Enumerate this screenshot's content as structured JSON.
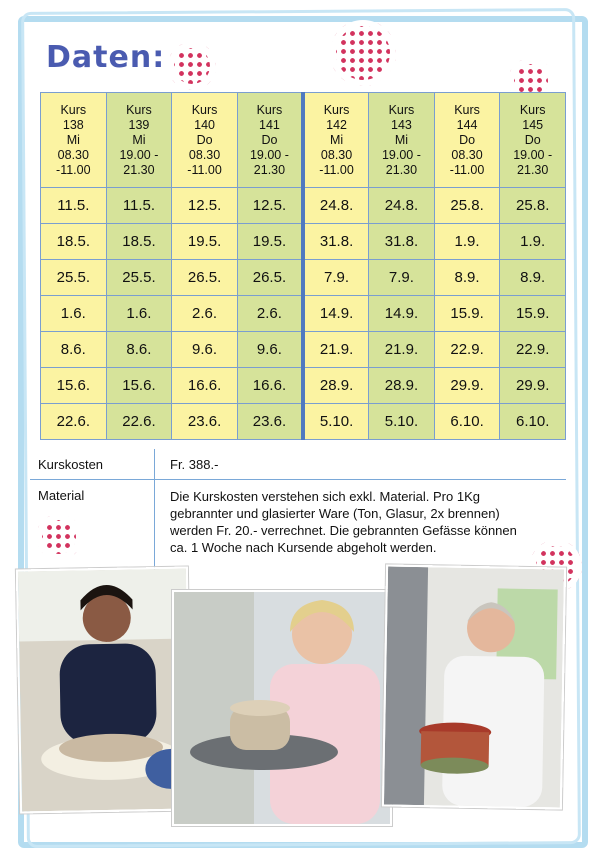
{
  "title": "Daten:",
  "header_row": [
    {
      "kurs": "Kurs",
      "num": "138",
      "day": "Mi",
      "time1": "08.30",
      "time2": "-11.00"
    },
    {
      "kurs": "Kurs",
      "num": "139",
      "day": "Mi",
      "time1": "19.00 -",
      "time2": "21.30"
    },
    {
      "kurs": "Kurs",
      "num": "140",
      "day": "Do",
      "time1": "08.30",
      "time2": "-11.00"
    },
    {
      "kurs": "Kurs",
      "num": "141",
      "day": "Do",
      "time1": "19.00 -",
      "time2": "21.30"
    },
    {
      "kurs": "Kurs",
      "num": "142",
      "day": "Mi",
      "time1": "08.30",
      "time2": "-11.00"
    },
    {
      "kurs": "Kurs",
      "num": "143",
      "day": "Mi",
      "time1": "19.00 -",
      "time2": "21.30"
    },
    {
      "kurs": "Kurs",
      "num": "144",
      "day": "Do",
      "time1": "08.30",
      "time2": "-11.00"
    },
    {
      "kurs": "Kurs",
      "num": "145",
      "day": "Do",
      "time1": "19.00 -",
      "time2": "21.30"
    }
  ],
  "rows": [
    [
      "11.5.",
      "11.5.",
      "12.5.",
      "12.5.",
      "24.8.",
      "24.8.",
      "25.8.",
      "25.8."
    ],
    [
      "18.5.",
      "18.5.",
      "19.5.",
      "19.5.",
      "31.8.",
      "31.8.",
      "1.9.",
      "1.9."
    ],
    [
      "25.5.",
      "25.5.",
      "26.5.",
      "26.5.",
      "7.9.",
      "7.9.",
      "8.9.",
      "8.9."
    ],
    [
      "1.6.",
      "1.6.",
      "2.6.",
      "2.6.",
      "14.9.",
      "14.9.",
      "15.9.",
      "15.9."
    ],
    [
      "8.6.",
      "8.6.",
      "9.6.",
      "9.6.",
      "21.9.",
      "21.9.",
      "22.9.",
      "22.9."
    ],
    [
      "15.6.",
      "15.6.",
      "16.6.",
      "16.6.",
      "28.9.",
      "28.9.",
      "29.9.",
      "29.9."
    ],
    [
      "22.6.",
      "22.6.",
      "23.6.",
      "23.6.",
      "5.10.",
      "5.10.",
      "6.10.",
      "6.10."
    ]
  ],
  "info": {
    "cost_label": "Kurskosten",
    "cost_value": "Fr. 388.-",
    "material_label": "Material",
    "material_lines": [
      "Die Kurskosten verstehen sich exkl. Material. Pro 1Kg",
      "gebrannter und glasierter Ware (Ton, Glasur, 2x brennen)",
      "werden Fr. 20.- verrechnet. Die gebrannten Gefässe können",
      "ca. 1 Woche nach Kursende abgeholt werden."
    ]
  },
  "colors": {
    "yellow": "#fbf3a2",
    "green": "#d6e39a",
    "accent": "#4a5bb0",
    "dots": "#d2335e"
  }
}
